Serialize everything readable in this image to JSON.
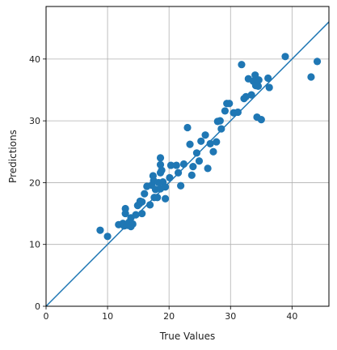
{
  "chart_data": {
    "type": "scatter",
    "title": "",
    "xlabel": "True Values",
    "ylabel": "Predictions",
    "xlim": [
      0,
      46
    ],
    "ylim": [
      0,
      48.5
    ],
    "xticks": [
      0,
      10,
      20,
      30,
      40
    ],
    "yticks": [
      0,
      10,
      20,
      30,
      40
    ],
    "grid": true,
    "point_color": "#1f77b4",
    "line_color": "#1f77b4",
    "reference_line": {
      "from": [
        0,
        0
      ],
      "to": [
        46,
        46
      ]
    },
    "points": [
      [
        8.8,
        12.3
      ],
      [
        10.0,
        11.3
      ],
      [
        11.8,
        13.2
      ],
      [
        12.5,
        13.4
      ],
      [
        12.7,
        13.0
      ],
      [
        12.9,
        15.0
      ],
      [
        12.9,
        15.8
      ],
      [
        13.2,
        13.1
      ],
      [
        13.5,
        13.6
      ],
      [
        13.8,
        14.3
      ],
      [
        13.8,
        12.9
      ],
      [
        14.1,
        13.3
      ],
      [
        14.6,
        14.8
      ],
      [
        14.9,
        16.3
      ],
      [
        15.2,
        16.6
      ],
      [
        15.3,
        17.0
      ],
      [
        15.6,
        16.9
      ],
      [
        15.6,
        15.0
      ],
      [
        16.0,
        18.2
      ],
      [
        16.4,
        19.4
      ],
      [
        16.9,
        16.4
      ],
      [
        17.2,
        19.6
      ],
      [
        17.4,
        21.1
      ],
      [
        17.5,
        20.3
      ],
      [
        17.6,
        17.6
      ],
      [
        17.8,
        18.9
      ],
      [
        18.1,
        17.6
      ],
      [
        18.3,
        20.0
      ],
      [
        18.6,
        19.0
      ],
      [
        18.6,
        22.9
      ],
      [
        18.6,
        21.6
      ],
      [
        18.6,
        24.0
      ],
      [
        18.8,
        22.0
      ],
      [
        19.0,
        20.1
      ],
      [
        19.4,
        17.4
      ],
      [
        19.4,
        19.3
      ],
      [
        20.1,
        20.8
      ],
      [
        20.3,
        22.8
      ],
      [
        21.2,
        22.8
      ],
      [
        21.5,
        21.6
      ],
      [
        21.9,
        19.5
      ],
      [
        22.4,
        23.0
      ],
      [
        23.0,
        28.9
      ],
      [
        23.4,
        26.2
      ],
      [
        23.7,
        21.2
      ],
      [
        23.9,
        22.6
      ],
      [
        24.5,
        24.8
      ],
      [
        24.9,
        23.5
      ],
      [
        25.2,
        26.7
      ],
      [
        25.9,
        27.7
      ],
      [
        26.3,
        22.3
      ],
      [
        26.7,
        26.3
      ],
      [
        27.2,
        25.0
      ],
      [
        27.7,
        26.6
      ],
      [
        27.9,
        29.9
      ],
      [
        28.3,
        30.0
      ],
      [
        28.5,
        28.7
      ],
      [
        29.1,
        31.6
      ],
      [
        29.4,
        32.8
      ],
      [
        29.8,
        32.8
      ],
      [
        30.5,
        31.3
      ],
      [
        31.2,
        31.4
      ],
      [
        31.8,
        39.1
      ],
      [
        32.2,
        33.6
      ],
      [
        32.5,
        33.9
      ],
      [
        32.9,
        36.8
      ],
      [
        33.4,
        34.2
      ],
      [
        33.7,
        36.4
      ],
      [
        34.0,
        37.4
      ],
      [
        34.1,
        35.7
      ],
      [
        34.3,
        30.6
      ],
      [
        34.5,
        35.6
      ],
      [
        34.6,
        36.6
      ],
      [
        35.0,
        30.2
      ],
      [
        36.1,
        36.9
      ],
      [
        36.3,
        35.4
      ],
      [
        38.9,
        40.4
      ],
      [
        43.1,
        37.1
      ],
      [
        44.1,
        39.6
      ]
    ]
  }
}
